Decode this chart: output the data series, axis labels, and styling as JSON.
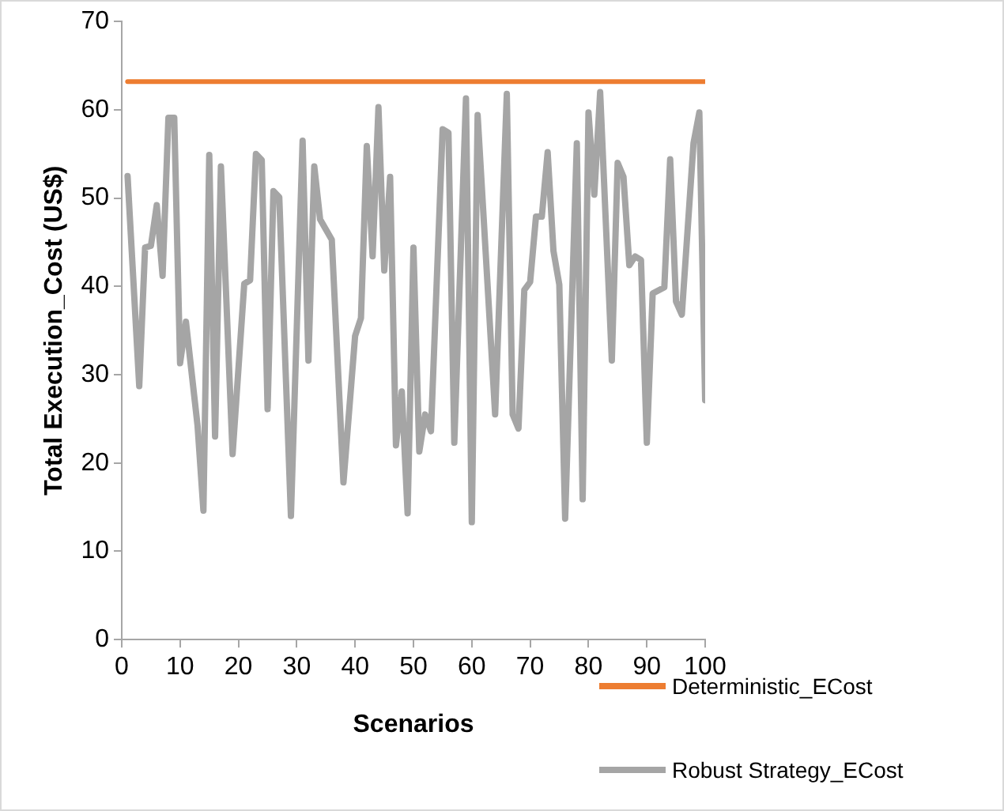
{
  "chart_data": {
    "type": "line",
    "xlabel": "Scenarios",
    "ylabel": "Total Execution_Cost (US$)",
    "xlim": [
      0,
      100
    ],
    "xticks": [
      0,
      10,
      20,
      30,
      40,
      50,
      60,
      70,
      80,
      90,
      100
    ],
    "ylim": [
      0,
      70
    ],
    "yticks": [
      0,
      10,
      20,
      30,
      40,
      50,
      60,
      70
    ],
    "grid": false,
    "legend": "bottom right",
    "marker": "none",
    "line_style": "solid",
    "series": [
      {
        "name": "Deterministic_ECost",
        "color": "#ed7d31",
        "x": [
          1,
          100
        ],
        "values": [
          63.2,
          63.2
        ]
      },
      {
        "name": "Robust Strategy_ECost",
        "color": "#a5a5a5",
        "x": [
          1,
          3,
          4,
          5,
          6,
          7,
          8,
          9,
          10,
          11,
          13,
          14,
          15,
          16,
          17,
          19,
          21,
          22,
          23,
          24,
          25,
          26,
          27,
          29,
          31,
          32,
          33,
          34,
          36,
          38,
          40,
          41,
          42,
          43,
          44,
          45,
          46,
          47,
          48,
          49,
          50,
          51,
          52,
          53,
          55,
          56,
          57,
          59,
          60,
          61,
          64,
          66,
          67,
          68,
          69,
          70,
          71,
          72,
          73,
          74,
          75,
          76,
          78,
          79,
          80,
          81,
          82,
          84,
          85,
          86,
          87,
          88,
          89,
          90,
          91,
          93,
          94,
          95,
          96,
          98,
          99,
          100
        ],
        "values": [
          52.5,
          28.7,
          44.4,
          44.6,
          49.2,
          41.2,
          59.1,
          59.1,
          31.3,
          36,
          24.2,
          14.6,
          54.9,
          23,
          53.6,
          21,
          40.3,
          40.7,
          55,
          54.3,
          26.1,
          50.8,
          50.1,
          14,
          56.5,
          31.6,
          53.6,
          47.6,
          45.3,
          17.8,
          34.4,
          36.4,
          55.9,
          43.4,
          60.3,
          41.8,
          52.4,
          22,
          28.1,
          14.3,
          44.4,
          21.3,
          25.5,
          23.6,
          57.8,
          57.4,
          22.3,
          61.3,
          13.3,
          59.4,
          25.5,
          61.8,
          25.5,
          23.9,
          39.6,
          40.5,
          47.9,
          47.9,
          55.2,
          44,
          40.2,
          13.7,
          56.2,
          15.9,
          59.7,
          50.4,
          62,
          31.6,
          54,
          52.4,
          42.4,
          43.4,
          43,
          22.3,
          39.2,
          39.9,
          54.4,
          38.3,
          36.8,
          56.2,
          59.7,
          27.1
        ]
      }
    ]
  }
}
